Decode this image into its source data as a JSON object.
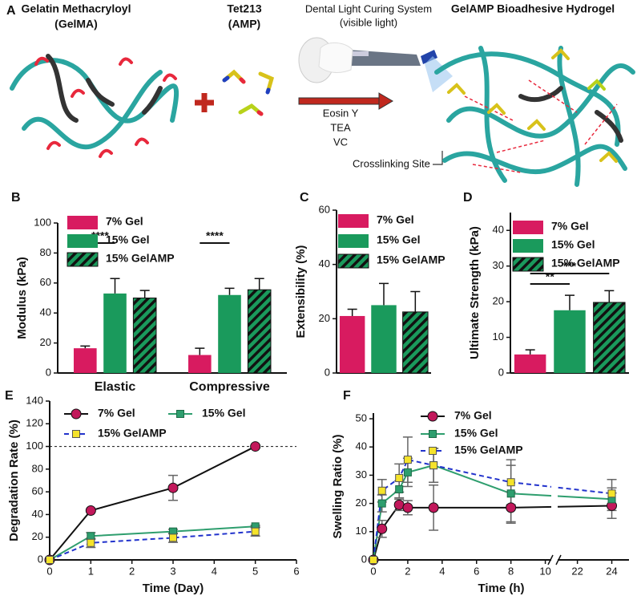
{
  "diagram": {
    "label": "A",
    "gelma": [
      "Gelatin Methacryloyl",
      "(GelMA)"
    ],
    "amp": [
      "Tet213",
      "(AMP)"
    ],
    "light": [
      "Dental Light Curing System",
      "(visible light)"
    ],
    "reagents": [
      "Eosin Y",
      "TEA",
      "VC"
    ],
    "product": "GelAMP Bioadhesive Hydrogel",
    "site": "Crosslinking Site"
  },
  "chart_data": [
    {
      "label": "B",
      "type": "bar",
      "ylabel": "Modulus (kPa)",
      "categories": [
        "Elastic",
        "Compressive"
      ],
      "ylim": [
        0,
        100
      ],
      "yticks": [
        0,
        20,
        40,
        60,
        80,
        100
      ],
      "legend": "upper left",
      "annotations": [
        "****",
        "****"
      ],
      "series": [
        {
          "name": "7% Gel",
          "color": "#d81b60",
          "values": [
            16.5,
            12
          ],
          "errors": [
            1.5,
            4.5
          ]
        },
        {
          "name": "15% Gel",
          "color": "#1a9a5c",
          "values": [
            53,
            52
          ],
          "errors": [
            10,
            4.5
          ]
        },
        {
          "name": "15% GelAMP",
          "color": "#1a9a5c",
          "hatch": true,
          "values": [
            50,
            55.5
          ],
          "errors": [
            5,
            7.5
          ]
        }
      ]
    },
    {
      "label": "C",
      "type": "bar",
      "ylabel": "Extensibility (%)",
      "categories": [
        null
      ],
      "ylim": [
        0,
        60
      ],
      "yticks": [
        0,
        20,
        40,
        60
      ],
      "legend": "upper left",
      "series": [
        {
          "name": "7% Gel",
          "color": "#d81b60",
          "values": [
            21
          ],
          "errors": [
            2.5
          ]
        },
        {
          "name": "15% Gel",
          "color": "#1a9a5c",
          "values": [
            25
          ],
          "errors": [
            8
          ]
        },
        {
          "name": "15% GelAMP",
          "color": "#1a9a5c",
          "hatch": true,
          "values": [
            22.5
          ],
          "errors": [
            7.5
          ]
        }
      ]
    },
    {
      "label": "D",
      "type": "bar",
      "ylabel": "Ultimate Strength (kPa)",
      "categories": [
        null
      ],
      "ylim": [
        0,
        45
      ],
      "yticks": [
        0,
        10,
        20,
        30,
        40
      ],
      "legend": "upper left",
      "annotations": [
        "**",
        "***"
      ],
      "series": [
        {
          "name": "7% Gel",
          "color": "#d81b60",
          "values": [
            5.2
          ],
          "errors": [
            1.3
          ]
        },
        {
          "name": "15% Gel",
          "color": "#1a9a5c",
          "values": [
            17.6
          ],
          "errors": [
            4.2
          ]
        },
        {
          "name": "15% GelAMP",
          "color": "#1a9a5c",
          "hatch": true,
          "values": [
            19.8
          ],
          "errors": [
            3.3
          ]
        }
      ]
    },
    {
      "label": "E",
      "type": "line",
      "xlabel": "Time (Day)",
      "ylabel": "Degradation Rate (%)",
      "x": [
        0,
        1,
        3,
        5
      ],
      "xlim": [
        0,
        6
      ],
      "xticks": [
        0,
        1,
        2,
        3,
        4,
        5,
        6
      ],
      "ylim": [
        0,
        140
      ],
      "yticks": [
        0,
        20,
        40,
        60,
        80,
        100,
        120,
        140
      ],
      "hline": 100,
      "legend": "upper left",
      "series": [
        {
          "name": "7% Gel",
          "marker": "circle",
          "color": "#c2185b",
          "line_color": "#111111",
          "values": [
            0,
            43.5,
            63.5,
            100
          ],
          "errors": [
            0,
            1,
            11,
            0
          ]
        },
        {
          "name": "15% Gel",
          "marker": "square",
          "color": "#2e9e6e",
          "line_color": "#2e9e6e",
          "values": [
            0,
            21,
            25,
            29.5
          ],
          "errors": [
            0,
            3,
            2,
            1
          ]
        },
        {
          "name": "15% GelAMP",
          "marker": "square",
          "color": "#f5e32a",
          "line_color": "#2233cc",
          "dash": true,
          "values": [
            0,
            15,
            19.5,
            25
          ],
          "errors": [
            0,
            4,
            4,
            4
          ]
        }
      ]
    },
    {
      "label": "F",
      "type": "line",
      "xlabel": "Time (h)",
      "ylabel": "Swelling Ratio (%)",
      "x": [
        0,
        0.5,
        1.5,
        2,
        3.5,
        8,
        24
      ],
      "xlim": [
        0,
        25
      ],
      "x_break": [
        10.3,
        20.9
      ],
      "xticks": [
        0,
        2,
        4,
        6,
        8,
        10,
        22,
        24
      ],
      "ylim": [
        0,
        52
      ],
      "yticks": [
        0,
        10,
        20,
        30,
        40,
        50
      ],
      "legend": "upper right",
      "series": [
        {
          "name": "7% Gel",
          "marker": "circle",
          "color": "#c2185b",
          "line_color": "#111111",
          "values": [
            0,
            11,
            19.5,
            18.5,
            18.5,
            18.5,
            19.2
          ],
          "errors": [
            0,
            3,
            2,
            2.5,
            8,
            5.5,
            4.5
          ]
        },
        {
          "name": "15% Gel",
          "marker": "square",
          "color": "#2e9e6e",
          "line_color": "#2e9e6e",
          "values": [
            0,
            20,
            25,
            31,
            33.5,
            23.5,
            21.5
          ],
          "errors": [
            0,
            3,
            3,
            5,
            6,
            10,
            4
          ]
        },
        {
          "name": "15% GelAMP",
          "marker": "square",
          "color": "#f5e32a",
          "line_color": "#2233cc",
          "dash": true,
          "values": [
            0,
            24.5,
            29,
            35.5,
            33.5,
            27.5,
            23.5
          ],
          "errors": [
            0,
            4,
            5,
            8,
            6,
            8,
            5
          ]
        }
      ]
    }
  ]
}
